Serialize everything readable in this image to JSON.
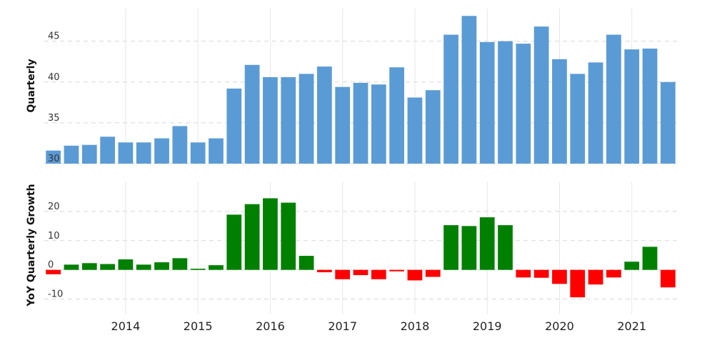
{
  "chart_data": [
    {
      "type": "bar",
      "ylabel": "Quarterly",
      "ylim": [
        30,
        49
      ],
      "yticks": [
        30,
        35,
        40,
        45
      ],
      "grid": true,
      "x": [
        "2013-Q1",
        "2013-Q2",
        "2013-Q3",
        "2013-Q4",
        "2014-Q1",
        "2014-Q2",
        "2014-Q3",
        "2014-Q4",
        "2015-Q1",
        "2015-Q2",
        "2015-Q3",
        "2015-Q4",
        "2016-Q1",
        "2016-Q2",
        "2016-Q3",
        "2016-Q4",
        "2017-Q1",
        "2017-Q2",
        "2017-Q3",
        "2017-Q4",
        "2018-Q1",
        "2018-Q2",
        "2018-Q3",
        "2018-Q4",
        "2019-Q1",
        "2019-Q2",
        "2019-Q3",
        "2019-Q4",
        "2020-Q1",
        "2020-Q2",
        "2020-Q3",
        "2020-Q4",
        "2021-Q1",
        "2021-Q2",
        "2021-Q3"
      ],
      "values": [
        31.6,
        32.2,
        32.3,
        33.3,
        32.6,
        32.6,
        33.1,
        34.6,
        32.6,
        33.1,
        39.2,
        42.1,
        40.6,
        40.6,
        41.0,
        41.9,
        39.4,
        39.9,
        39.7,
        41.8,
        38.1,
        39.0,
        45.8,
        48.1,
        44.9,
        45.0,
        44.7,
        46.8,
        42.8,
        41.0,
        42.4,
        45.8,
        44.0,
        44.1,
        40.0
      ],
      "color": "#5b9bd5"
    },
    {
      "type": "bar",
      "ylabel": "YoY Quarterly Growth",
      "ylim": [
        -15,
        30
      ],
      "yticks": [
        -10,
        0,
        10,
        20
      ],
      "grid": true,
      "x": [
        "2013-Q1",
        "2013-Q2",
        "2013-Q3",
        "2013-Q4",
        "2014-Q1",
        "2014-Q2",
        "2014-Q3",
        "2014-Q4",
        "2015-Q1",
        "2015-Q2",
        "2015-Q3",
        "2015-Q4",
        "2016-Q1",
        "2016-Q2",
        "2016-Q3",
        "2016-Q4",
        "2017-Q1",
        "2017-Q2",
        "2017-Q3",
        "2017-Q4",
        "2018-Q1",
        "2018-Q2",
        "2018-Q3",
        "2018-Q4",
        "2019-Q1",
        "2019-Q2",
        "2019-Q3",
        "2019-Q4",
        "2020-Q1",
        "2020-Q2",
        "2020-Q3",
        "2020-Q4",
        "2021-Q1",
        "2021-Q2",
        "2021-Q3"
      ],
      "values": [
        -1.5,
        1.8,
        2.3,
        2.0,
        3.6,
        1.8,
        2.6,
        4.0,
        0.4,
        1.6,
        18.9,
        22.5,
        24.5,
        23.0,
        4.8,
        -0.8,
        -3.2,
        -1.8,
        -3.2,
        -0.5,
        -3.6,
        -2.4,
        15.3,
        15.0,
        18.0,
        15.3,
        -2.6,
        -2.7,
        -4.8,
        -9.4,
        -5.0,
        -2.6,
        2.8,
        7.9,
        -6.0
      ],
      "positive_color": "#008000",
      "negative_color": "#ff0000"
    }
  ],
  "x_axis": {
    "tick_labels": [
      "2014",
      "2015",
      "2016",
      "2017",
      "2018",
      "2019",
      "2020",
      "2021"
    ]
  }
}
